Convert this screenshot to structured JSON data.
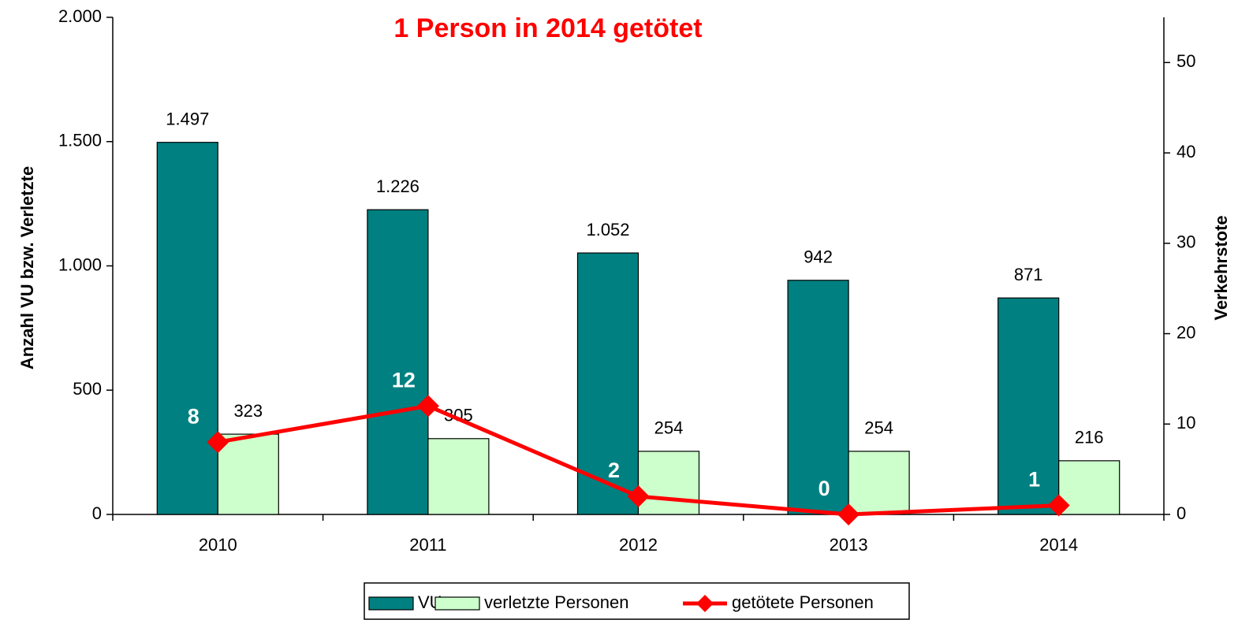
{
  "chart_data": {
    "type": "bar_line",
    "title": "1 Person in 2014 getötet",
    "y_label": "Anzahl VU bzw. Verletzte",
    "y2_label": "Verkehrstote",
    "categories": [
      "2010",
      "2011",
      "2012",
      "2013",
      "2014"
    ],
    "series": [
      {
        "name": "VU",
        "color": "#008080",
        "type": "bar",
        "values": [
          1497,
          1226,
          1052,
          942,
          871
        ],
        "value_labels": [
          "1.497",
          "1.226",
          "1.052",
          "942",
          "871"
        ]
      },
      {
        "name": "verletzte Personen",
        "color": "#ccffcc",
        "type": "bar",
        "values": [
          323,
          305,
          254,
          254,
          216
        ]
      },
      {
        "name": "getötete Personen",
        "color": "#ff0000",
        "type": "line",
        "axis": "y2",
        "values": [
          8,
          12,
          2,
          0,
          1
        ]
      }
    ],
    "ylim": [
      0,
      2000
    ],
    "yticks": [
      0,
      500,
      {
        "value": 1000,
        "label": "1.000"
      },
      {
        "value": 1500,
        "label": "1.500"
      },
      {
        "value": 2000,
        "label": "2.000"
      }
    ],
    "y2lim": [
      0,
      55
    ],
    "y2ticks": [
      0,
      10,
      20,
      30,
      40,
      50
    ],
    "legend": "bottom"
  }
}
